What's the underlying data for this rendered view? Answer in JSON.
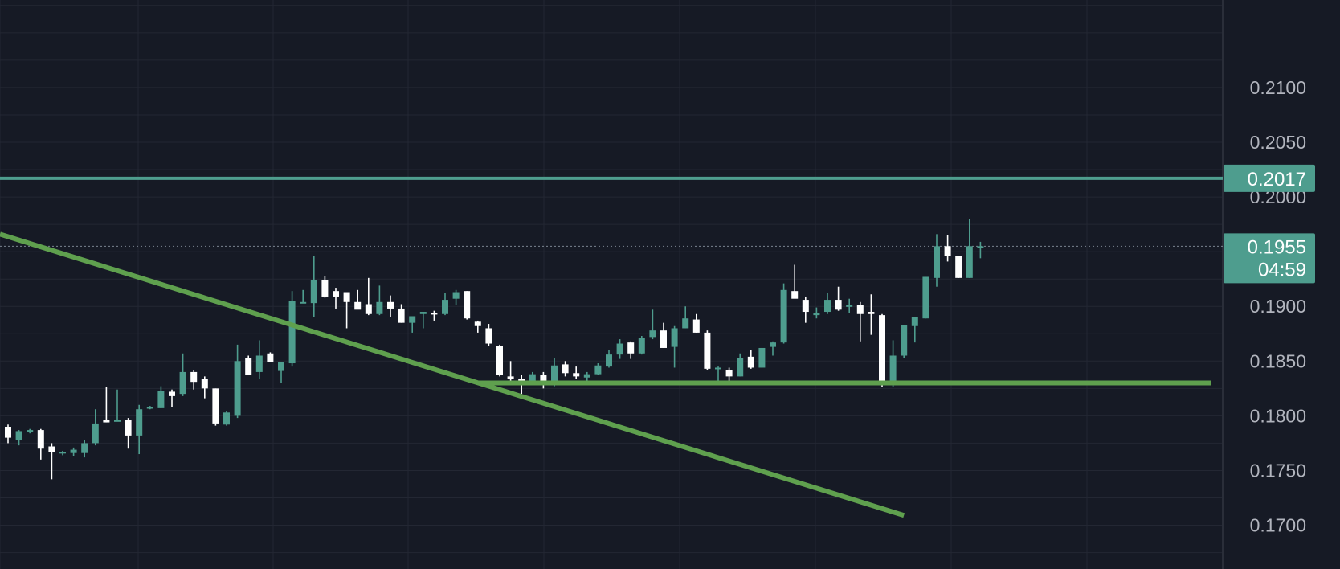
{
  "chart_data": {
    "type": "candlestick",
    "ylim": [
      0.166,
      0.218
    ],
    "y_ticks": [
      "0.2100",
      "0.2050",
      "0.2000",
      "0.1900",
      "0.1850",
      "0.1800",
      "0.1750",
      "0.1700"
    ],
    "grid": true,
    "colors": {
      "background": "#161a25",
      "grid": "#232733",
      "up": "#4e9d8e",
      "down": "#ffffff",
      "level_line": "#4e9d8e",
      "trend_line": "#5fa04e",
      "price_badge": "#4e9d8e",
      "current_price_line": "#7a8490"
    },
    "levels": [
      {
        "label": "0.2017",
        "value": 0.2017
      }
    ],
    "current_price": {
      "price_label": "0.1955",
      "countdown": "04:59",
      "value": 0.1955
    },
    "trend_lines": [
      {
        "name": "descending",
        "from": [
          0,
          0.1966
        ],
        "to": [
          82,
          0.1709
        ]
      },
      {
        "name": "support",
        "from": [
          43,
          0.183
        ],
        "to": [
          104,
          0.183
        ]
      }
    ],
    "candles": [
      [
        0.179,
        0.1792,
        0.1775,
        0.178
      ],
      [
        0.1778,
        0.1787,
        0.1773,
        0.1786
      ],
      [
        0.1785,
        0.1788,
        0.1784,
        0.1787
      ],
      [
        0.1787,
        0.1788,
        0.176,
        0.177
      ],
      [
        0.1772,
        0.1775,
        0.1742,
        0.1767
      ],
      [
        0.1766,
        0.1768,
        0.1764,
        0.1767
      ],
      [
        0.1766,
        0.1771,
        0.1763,
        0.1769
      ],
      [
        0.1766,
        0.1778,
        0.1762,
        0.1775
      ],
      [
        0.1775,
        0.1806,
        0.1773,
        0.1793
      ],
      [
        0.1796,
        0.1826,
        0.1794,
        0.1794
      ],
      [
        0.1795,
        0.1824,
        0.1795,
        0.1796
      ],
      [
        0.1796,
        0.1798,
        0.177,
        0.1782
      ],
      [
        0.1782,
        0.181,
        0.1765,
        0.1806
      ],
      [
        0.1808,
        0.1809,
        0.1806,
        0.1808
      ],
      [
        0.1807,
        0.1827,
        0.1807,
        0.1823
      ],
      [
        0.1822,
        0.1824,
        0.1808,
        0.1818
      ],
      [
        0.182,
        0.1857,
        0.1818,
        0.184
      ],
      [
        0.184,
        0.1842,
        0.1824,
        0.1831
      ],
      [
        0.1834,
        0.1836,
        0.1816,
        0.1825
      ],
      [
        0.1825,
        0.1825,
        0.1791,
        0.1793
      ],
      [
        0.1792,
        0.1804,
        0.1791,
        0.1803
      ],
      [
        0.18,
        0.1865,
        0.1798,
        0.185
      ],
      [
        0.1853,
        0.1855,
        0.1838,
        0.1837
      ],
      [
        0.184,
        0.1869,
        0.1834,
        0.1855
      ],
      [
        0.1857,
        0.1858,
        0.1849,
        0.1849
      ],
      [
        0.1841,
        0.1847,
        0.183,
        0.1849
      ],
      [
        0.1848,
        0.1914,
        0.1845,
        0.1905
      ],
      [
        0.1904,
        0.1915,
        0.1903,
        0.1904
      ],
      [
        0.1903,
        0.1946,
        0.189,
        0.1924
      ],
      [
        0.1924,
        0.1928,
        0.1908,
        0.1909
      ],
      [
        0.1914,
        0.1917,
        0.1898,
        0.1909
      ],
      [
        0.1913,
        0.1912,
        0.188,
        0.1904
      ],
      [
        0.1904,
        0.1915,
        0.1898,
        0.1897
      ],
      [
        0.1902,
        0.1926,
        0.1892,
        0.1893
      ],
      [
        0.1893,
        0.1919,
        0.1892,
        0.1904
      ],
      [
        0.1904,
        0.191,
        0.189,
        0.1898
      ],
      [
        0.1898,
        0.1902,
        0.1885,
        0.1885
      ],
      [
        0.1885,
        0.189,
        0.1876,
        0.1891
      ],
      [
        0.1893,
        0.1895,
        0.188,
        0.1895
      ],
      [
        0.1894,
        0.1896,
        0.1887,
        0.1893
      ],
      [
        0.1893,
        0.1912,
        0.1892,
        0.1906
      ],
      [
        0.1907,
        0.1915,
        0.1901,
        0.1913
      ],
      [
        0.1914,
        0.1914,
        0.1888,
        0.1889
      ],
      [
        0.1886,
        0.1887,
        0.1876,
        0.1882
      ],
      [
        0.188,
        0.1884,
        0.1864,
        0.1866
      ],
      [
        0.1864,
        0.1865,
        0.1836,
        0.1837
      ],
      [
        0.1836,
        0.185,
        0.1829,
        0.1834
      ],
      [
        0.1834,
        0.1837,
        0.182,
        0.1829
      ],
      [
        0.1829,
        0.184,
        0.1829,
        0.1838
      ],
      [
        0.1837,
        0.184,
        0.1825,
        0.1829
      ],
      [
        0.1828,
        0.1853,
        0.1827,
        0.1846
      ],
      [
        0.1847,
        0.185,
        0.1836,
        0.1839
      ],
      [
        0.1839,
        0.1845,
        0.1834,
        0.1836
      ],
      [
        0.1835,
        0.184,
        0.1832,
        0.1838
      ],
      [
        0.1838,
        0.1848,
        0.1837,
        0.1846
      ],
      [
        0.1845,
        0.186,
        0.1844,
        0.1856
      ],
      [
        0.1856,
        0.187,
        0.1852,
        0.1866
      ],
      [
        0.1867,
        0.1868,
        0.1852,
        0.1857
      ],
      [
        0.1857,
        0.1873,
        0.1856,
        0.1871
      ],
      [
        0.1872,
        0.1897,
        0.187,
        0.1878
      ],
      [
        0.1878,
        0.1885,
        0.1862,
        0.1862
      ],
      [
        0.1863,
        0.1882,
        0.1844,
        0.188
      ],
      [
        0.188,
        0.19,
        0.188,
        0.1889
      ],
      [
        0.1888,
        0.1893,
        0.1876,
        0.1876
      ],
      [
        0.1876,
        0.1878,
        0.1842,
        0.1843
      ],
      [
        0.1843,
        0.1845,
        0.1828,
        0.1844
      ],
      [
        0.1842,
        0.1844,
        0.1832,
        0.1836
      ],
      [
        0.1836,
        0.1857,
        0.1836,
        0.1853
      ],
      [
        0.1854,
        0.186,
        0.1843,
        0.1844
      ],
      [
        0.1844,
        0.1862,
        0.1844,
        0.1862
      ],
      [
        0.1863,
        0.1868,
        0.1855,
        0.1867
      ],
      [
        0.1867,
        0.1921,
        0.1866,
        0.1915
      ],
      [
        0.1914,
        0.1938,
        0.1908,
        0.1907
      ],
      [
        0.1906,
        0.1909,
        0.1885,
        0.1895
      ],
      [
        0.1892,
        0.1899,
        0.1889,
        0.1894
      ],
      [
        0.1895,
        0.1912,
        0.1893,
        0.1906
      ],
      [
        0.1906,
        0.1918,
        0.1896,
        0.1897
      ],
      [
        0.19,
        0.1907,
        0.1894,
        0.1901
      ],
      [
        0.1901,
        0.1904,
        0.1868,
        0.1893
      ],
      [
        0.1895,
        0.1911,
        0.1874,
        0.1893
      ],
      [
        0.1892,
        0.1893,
        0.1826,
        0.1831
      ],
      [
        0.1832,
        0.1869,
        0.1826,
        0.1855
      ],
      [
        0.1855,
        0.1883,
        0.1853,
        0.1883
      ],
      [
        0.1882,
        0.1889,
        0.1867,
        0.189
      ],
      [
        0.1889,
        0.1927,
        0.1889,
        0.1927
      ],
      [
        0.1926,
        0.1966,
        0.1918,
        0.1955
      ],
      [
        0.1955,
        0.1965,
        0.1941,
        0.1946
      ],
      [
        0.1946,
        0.1946,
        0.1926,
        0.1926
      ],
      [
        0.1926,
        0.198,
        0.1926,
        0.1955
      ],
      [
        0.1955,
        0.1959,
        0.1944,
        0.1955
      ]
    ]
  }
}
